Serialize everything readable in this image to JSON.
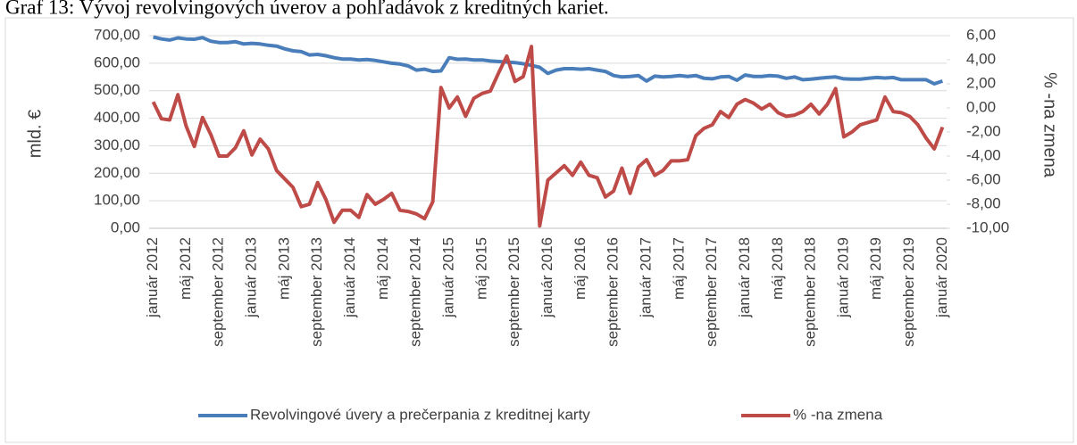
{
  "chart_data": {
    "type": "line",
    "title": "Graf 13: Vývoj revolvingových úverov a pohľadávok z kreditných kariet.",
    "ylabel": "mld. €",
    "y2label": "% -na zmena",
    "categories": [
      "január 2012",
      null,
      null,
      null,
      "máj 2012",
      null,
      null,
      null,
      "september 2012",
      null,
      null,
      null,
      "január 2013",
      null,
      null,
      null,
      "máj 2013",
      null,
      null,
      null,
      "september 2013",
      null,
      null,
      null,
      "január 2014",
      null,
      null,
      null,
      "máj 2014",
      null,
      null,
      null,
      "september 2014",
      null,
      null,
      null,
      "január 2015",
      null,
      null,
      null,
      "máj 2015",
      null,
      null,
      null,
      "september 2015",
      null,
      null,
      null,
      "január 2016",
      null,
      null,
      null,
      "máj 2016",
      null,
      null,
      null,
      "september 2016",
      null,
      null,
      null,
      "január 2017",
      null,
      null,
      null,
      "máj 2017",
      null,
      null,
      null,
      "september 2017",
      null,
      null,
      null,
      "január 2018",
      null,
      null,
      null,
      "máj 2018",
      null,
      null,
      null,
      "september 2018",
      null,
      null,
      null,
      "január 2019",
      null,
      null,
      null,
      "máj 2019",
      null,
      null,
      null,
      "september 2019",
      null,
      null,
      null,
      "január 2020"
    ],
    "series": [
      {
        "name": "Revolvingové úvery a prečerpania z kreditnej karty",
        "color": "#4a7ebb",
        "values": [
          695,
          688,
          684,
          692,
          688,
          687,
          693,
          680,
          675,
          675,
          678,
          670,
          672,
          670,
          665,
          662,
          652,
          645,
          642,
          630,
          632,
          627,
          620,
          615,
          615,
          612,
          613,
          610,
          605,
          600,
          597,
          590,
          575,
          578,
          570,
          572,
          620,
          614,
          615,
          612,
          612,
          608,
          606,
          604,
          602,
          598,
          592,
          585,
          563,
          575,
          580,
          580,
          578,
          580,
          575,
          570,
          555,
          550,
          552,
          555,
          535,
          553,
          550,
          552,
          555,
          552,
          555,
          545,
          543,
          550,
          552,
          538,
          557,
          552,
          552,
          555,
          553,
          545,
          550,
          540,
          542,
          545,
          548,
          550,
          543,
          542,
          542,
          545,
          548,
          546,
          548,
          540,
          540,
          540,
          540,
          525,
          535
        ]
      },
      {
        "name": "% -na zmena",
        "color": "#be4b48",
        "axis": "y2",
        "values": [
          0.5,
          -0.9,
          -1.0,
          1.1,
          -1.5,
          -3.2,
          -0.8,
          -2.2,
          -4.0,
          -4.0,
          -3.3,
          -1.9,
          -3.9,
          -2.6,
          -3.4,
          -5.2,
          -5.9,
          -6.6,
          -8.2,
          -8.0,
          -6.2,
          -7.6,
          -9.5,
          -8.5,
          -8.5,
          -9.1,
          -7.2,
          -8.0,
          -7.6,
          -7.1,
          -8.5,
          -8.6,
          -8.8,
          -9.2,
          -7.8,
          1.7,
          0.0,
          0.9,
          -0.7,
          0.8,
          1.2,
          1.4,
          2.9,
          4.3,
          2.2,
          2.6,
          5.1,
          -9.8,
          -6.0,
          -5.4,
          -4.8,
          -5.6,
          -4.5,
          -5.6,
          -5.8,
          -7.4,
          -6.9,
          -5.0,
          -7.1,
          -4.9,
          -4.3,
          -5.6,
          -5.2,
          -4.4,
          -4.4,
          -4.3,
          -2.3,
          -1.7,
          -1.4,
          -0.3,
          -0.8,
          0.3,
          0.7,
          0.4,
          -0.1,
          0.3,
          -0.4,
          -0.7,
          -0.6,
          -0.3,
          0.3,
          -0.5,
          0.3,
          1.6,
          -2.4,
          -2.0,
          -1.4,
          -1.2,
          -1.0,
          0.9,
          -0.3,
          -0.4,
          -0.7,
          -1.4,
          -2.5,
          -3.4,
          -1.6
        ]
      }
    ],
    "ylim": [
      0,
      700
    ],
    "yticks": [
      {
        "value": 0,
        "label": "0,00"
      },
      {
        "value": 100,
        "label": "100,00"
      },
      {
        "value": 200,
        "label": "200,00"
      },
      {
        "value": 300,
        "label": "300,00"
      },
      {
        "value": 400,
        "label": "400,00"
      },
      {
        "value": 500,
        "label": "500,00"
      },
      {
        "value": 600,
        "label": "600,00"
      },
      {
        "value": 700,
        "label": "700,00"
      }
    ],
    "y2lim": [
      -10,
      6
    ],
    "y2ticks": [
      {
        "value": -10,
        "label": "-10,00"
      },
      {
        "value": -8,
        "label": "-8,00"
      },
      {
        "value": -6,
        "label": "-6,00"
      },
      {
        "value": -4,
        "label": "-4,00"
      },
      {
        "value": -2,
        "label": "-2,00"
      },
      {
        "value": 0,
        "label": "0,00"
      },
      {
        "value": 2,
        "label": "2,00"
      },
      {
        "value": 4,
        "label": "4,00"
      },
      {
        "value": 6,
        "label": "6,00"
      }
    ],
    "grid": true,
    "legend": "bottom"
  }
}
